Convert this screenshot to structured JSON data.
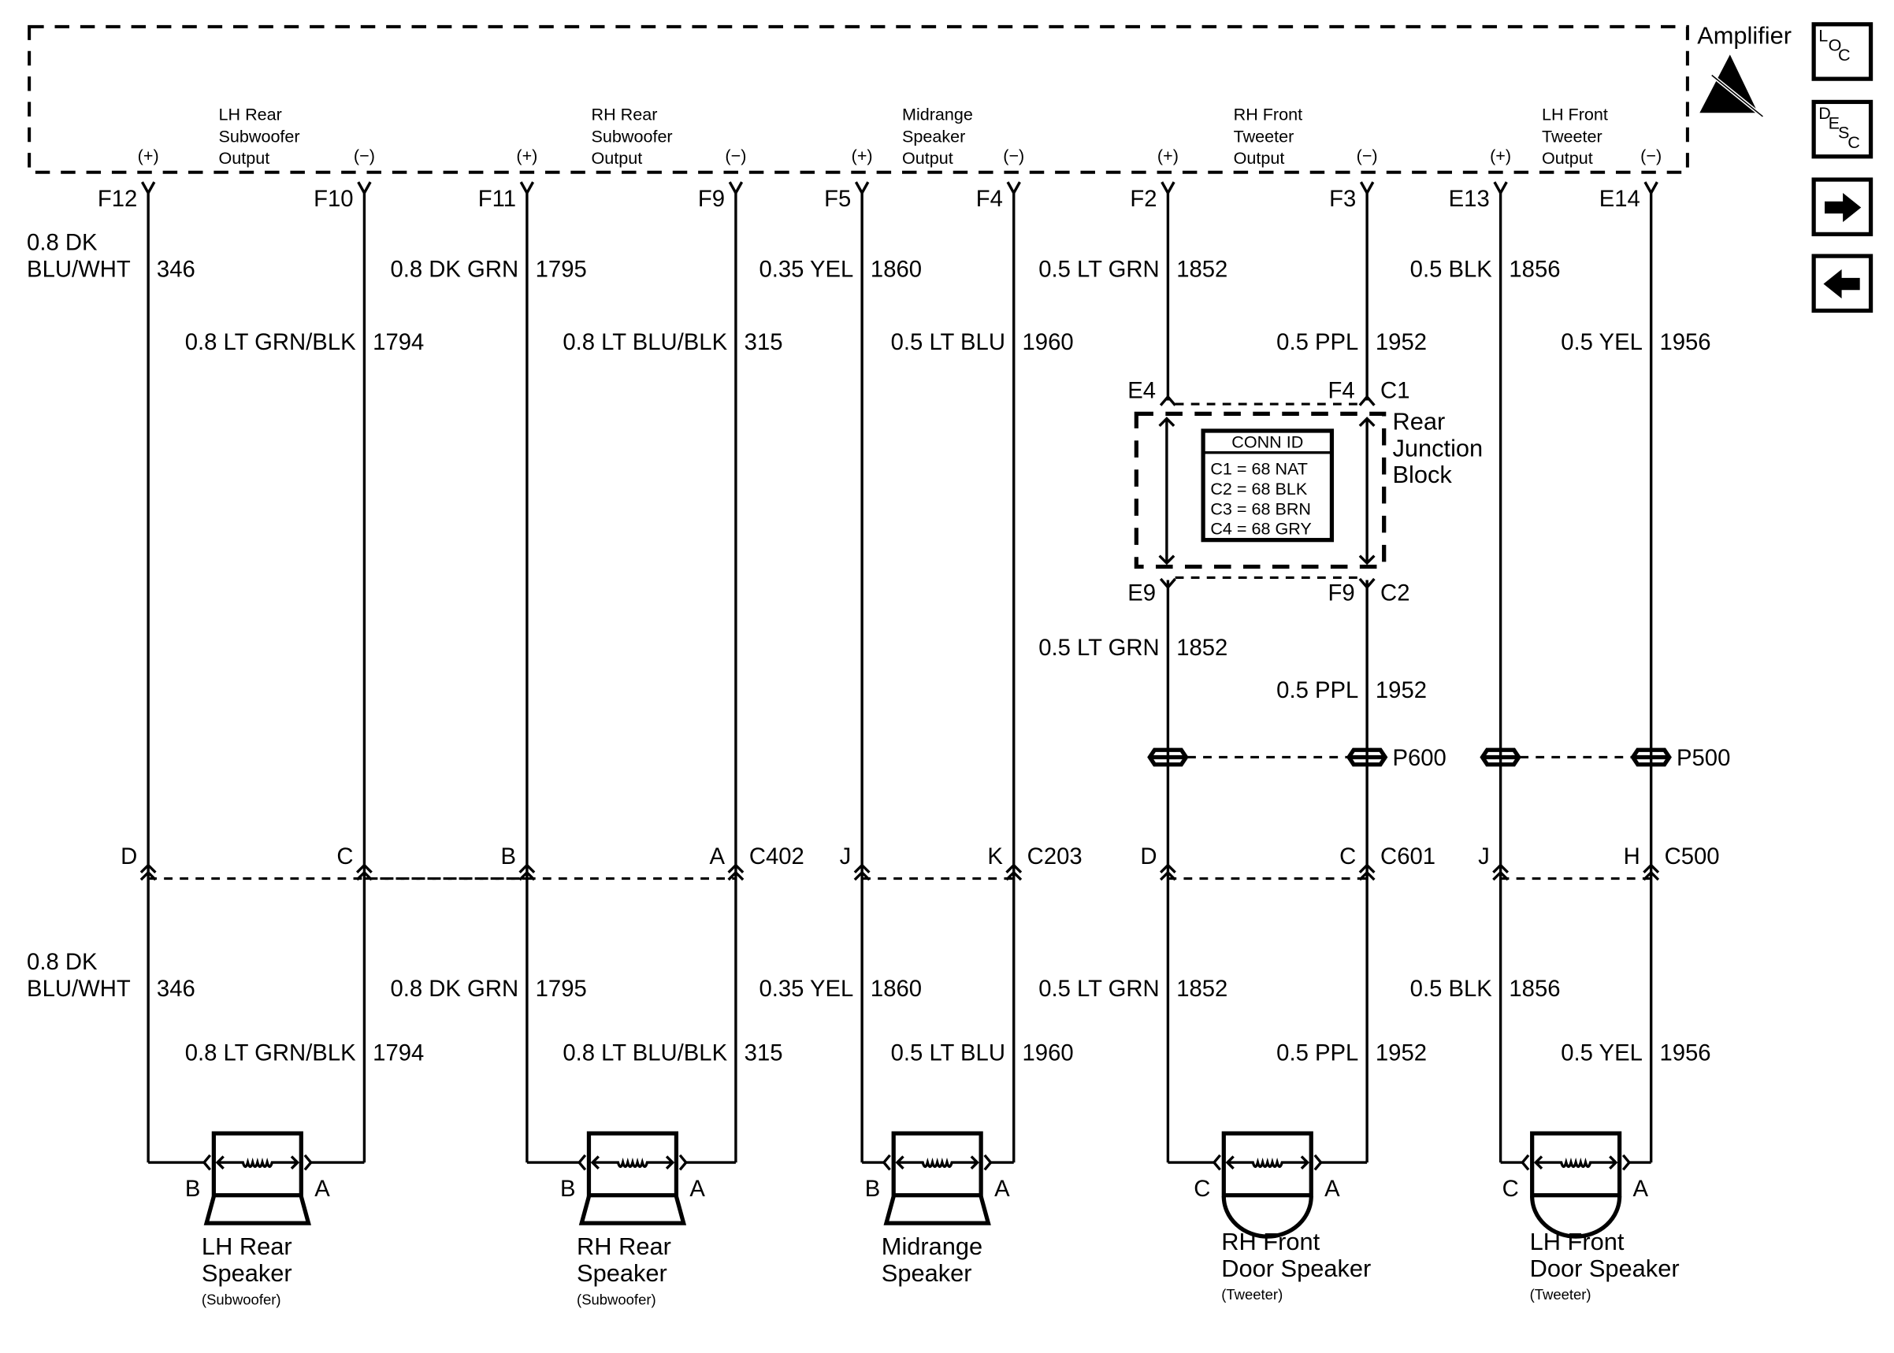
{
  "amplifier": {
    "label": "Amplifier",
    "esd_icon": "esd-warning-icon",
    "polarity_pos": "(+)",
    "polarity_neg": "(−)",
    "outputs": [
      {
        "lines": [
          "LH Rear",
          "Subwoofer",
          "Output"
        ]
      },
      {
        "lines": [
          "RH Rear",
          "Subwoofer",
          "Output"
        ]
      },
      {
        "lines": [
          "Midrange",
          "Speaker",
          "Output"
        ]
      },
      {
        "lines": [
          "RH Front",
          "Tweeter",
          "Output"
        ]
      },
      {
        "lines": [
          "LH Front",
          "Tweeter",
          "Output"
        ]
      }
    ]
  },
  "nav_buttons": [
    {
      "name": "loc-button",
      "letters": [
        "L",
        "O",
        "C"
      ]
    },
    {
      "name": "desc-button",
      "letters": [
        "D",
        "E",
        "S",
        "C"
      ]
    },
    {
      "name": "next-button",
      "icon": "arrow-right-icon"
    },
    {
      "name": "prev-button",
      "icon": "arrow-left-icon"
    }
  ],
  "wires": [
    {
      "amp_pin": "F12",
      "wire": [
        "0.8 DK",
        "BLU/WHT"
      ],
      "circuit": "346",
      "conn_pin": "D",
      "speaker_pin": "B"
    },
    {
      "amp_pin": "F10",
      "wire": [
        "0.8 LT GRN/BLK"
      ],
      "circuit": "1794",
      "conn_pin": "C",
      "speaker_pin": "A"
    },
    {
      "amp_pin": "F11",
      "wire": [
        "0.8 DK GRN"
      ],
      "circuit": "1795",
      "conn_pin": "B",
      "speaker_pin": "B"
    },
    {
      "amp_pin": "F9",
      "wire": [
        "0.8 LT BLU/BLK"
      ],
      "circuit": "315",
      "conn_pin": "A",
      "speaker_pin": "A"
    },
    {
      "amp_pin": "F5",
      "wire": [
        "0.35 YEL"
      ],
      "circuit": "1860",
      "conn_pin": "J",
      "speaker_pin": "B"
    },
    {
      "amp_pin": "F4",
      "wire": [
        "0.5 LT BLU"
      ],
      "circuit": "1960",
      "conn_pin": "K",
      "speaker_pin": "A"
    },
    {
      "amp_pin": "F2",
      "wire": [
        "0.5 LT GRN"
      ],
      "circuit": "1852",
      "conn_pin": "D",
      "speaker_pin": "C",
      "jb_top_pin": "E4",
      "jb_bottom_pin": "E9"
    },
    {
      "amp_pin": "F3",
      "wire": [
        "0.5 PPL"
      ],
      "circuit": "1952",
      "conn_pin": "C",
      "speaker_pin": "A",
      "jb_top_pin": "F4",
      "jb_bottom_pin": "F9"
    },
    {
      "amp_pin": "E13",
      "wire": [
        "0.5 BLK"
      ],
      "circuit": "1856",
      "conn_pin": "J",
      "speaker_pin": "C"
    },
    {
      "amp_pin": "E14",
      "wire": [
        "0.5 YEL"
      ],
      "circuit": "1956",
      "conn_pin": "H",
      "speaker_pin": "A"
    }
  ],
  "connectors": [
    "C402",
    "C203",
    "C601",
    "C500"
  ],
  "splices": [
    "P600",
    "P500"
  ],
  "junction_block": {
    "lines": [
      "Rear",
      "Junction",
      "Block"
    ],
    "top_conn": "C1",
    "bottom_conn": "C2",
    "conn_id": {
      "title": "CONN ID",
      "rows": [
        "C1 = 68 NAT",
        "C2 = 68 BLK",
        "C3 = 68 BRN",
        "C4 = 68 GRY"
      ]
    }
  },
  "speakers": [
    {
      "lines": [
        "LH Rear",
        "Speaker"
      ],
      "note": "(Subwoofer)",
      "type": "subwoofer"
    },
    {
      "lines": [
        "RH Rear",
        "Speaker"
      ],
      "note": "(Subwoofer)",
      "type": "subwoofer"
    },
    {
      "lines": [
        "Midrange",
        "Speaker"
      ],
      "note": "",
      "type": "subwoofer"
    },
    {
      "lines": [
        "RH Front",
        "Door Speaker"
      ],
      "note": "(Tweeter)",
      "type": "tweeter"
    },
    {
      "lines": [
        "LH Front",
        "Door Speaker"
      ],
      "note": "(Tweeter)",
      "type": "tweeter"
    }
  ]
}
